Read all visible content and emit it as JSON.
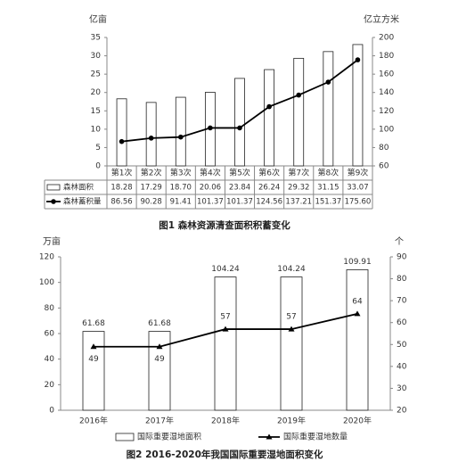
{
  "chart_data": [
    {
      "type": "bar",
      "title": "图1 森林资源清查面积积蓄变化",
      "y_label": "亿亩",
      "y2_label": "亿立方米",
      "categories": [
        "第1次",
        "第2次",
        "第3次",
        "第4次",
        "第5次",
        "第6次",
        "第7次",
        "第8次",
        "第9次"
      ],
      "series": [
        {
          "name": "森林面积",
          "type": "bar",
          "color": "#ffffff",
          "values": [
            18.28,
            17.29,
            18.7,
            20.06,
            23.84,
            26.24,
            29.32,
            31.15,
            33.07
          ],
          "value_labels": [
            "18.28",
            "17.29",
            "18.70",
            "20.06",
            "23.84",
            "26.24",
            "29.32",
            "31.15",
            "33.07"
          ]
        },
        {
          "name": "森林蓄积量",
          "type": "line",
          "axis": "y2",
          "color": "#000000",
          "values": [
            86.56,
            90.28,
            91.41,
            101.37,
            101.37,
            124.56,
            137.21,
            151.37,
            175.6
          ],
          "value_labels": [
            "86.56",
            "90.28",
            "91.41",
            "101.37",
            "101.37",
            "124.56",
            "137.21",
            "151.37",
            "175.60"
          ]
        }
      ],
      "ylim": [
        0,
        35
      ],
      "yticks": [
        0,
        5,
        10,
        15,
        20,
        25,
        30,
        35
      ],
      "y2lim": [
        60,
        200
      ],
      "y2ticks": [
        60,
        80,
        100,
        120,
        140,
        160,
        180,
        200
      ]
    },
    {
      "type": "bar",
      "title": "图2 2016-2020年我国国际重要湿地面积变化",
      "y_label": "万亩",
      "y2_label": "个",
      "categories": [
        "2016年",
        "2017年",
        "2018年",
        "2019年",
        "2020年"
      ],
      "series": [
        {
          "name": "国际重要湿地面积",
          "type": "bar",
          "color": "#ffffff",
          "values": [
            61.68,
            61.68,
            104.24,
            104.24,
            109.91
          ]
        },
        {
          "name": "国际重要湿地数量",
          "type": "line",
          "axis": "y2",
          "color": "#000000",
          "values": [
            49,
            49,
            57,
            57,
            64
          ]
        }
      ],
      "ylim": [
        0,
        120
      ],
      "yticks": [
        0,
        20,
        40,
        60,
        80,
        100,
        120
      ],
      "y2lim": [
        20,
        90
      ],
      "y2ticks": [
        20,
        30,
        40,
        50,
        60,
        70,
        80,
        90
      ]
    }
  ]
}
